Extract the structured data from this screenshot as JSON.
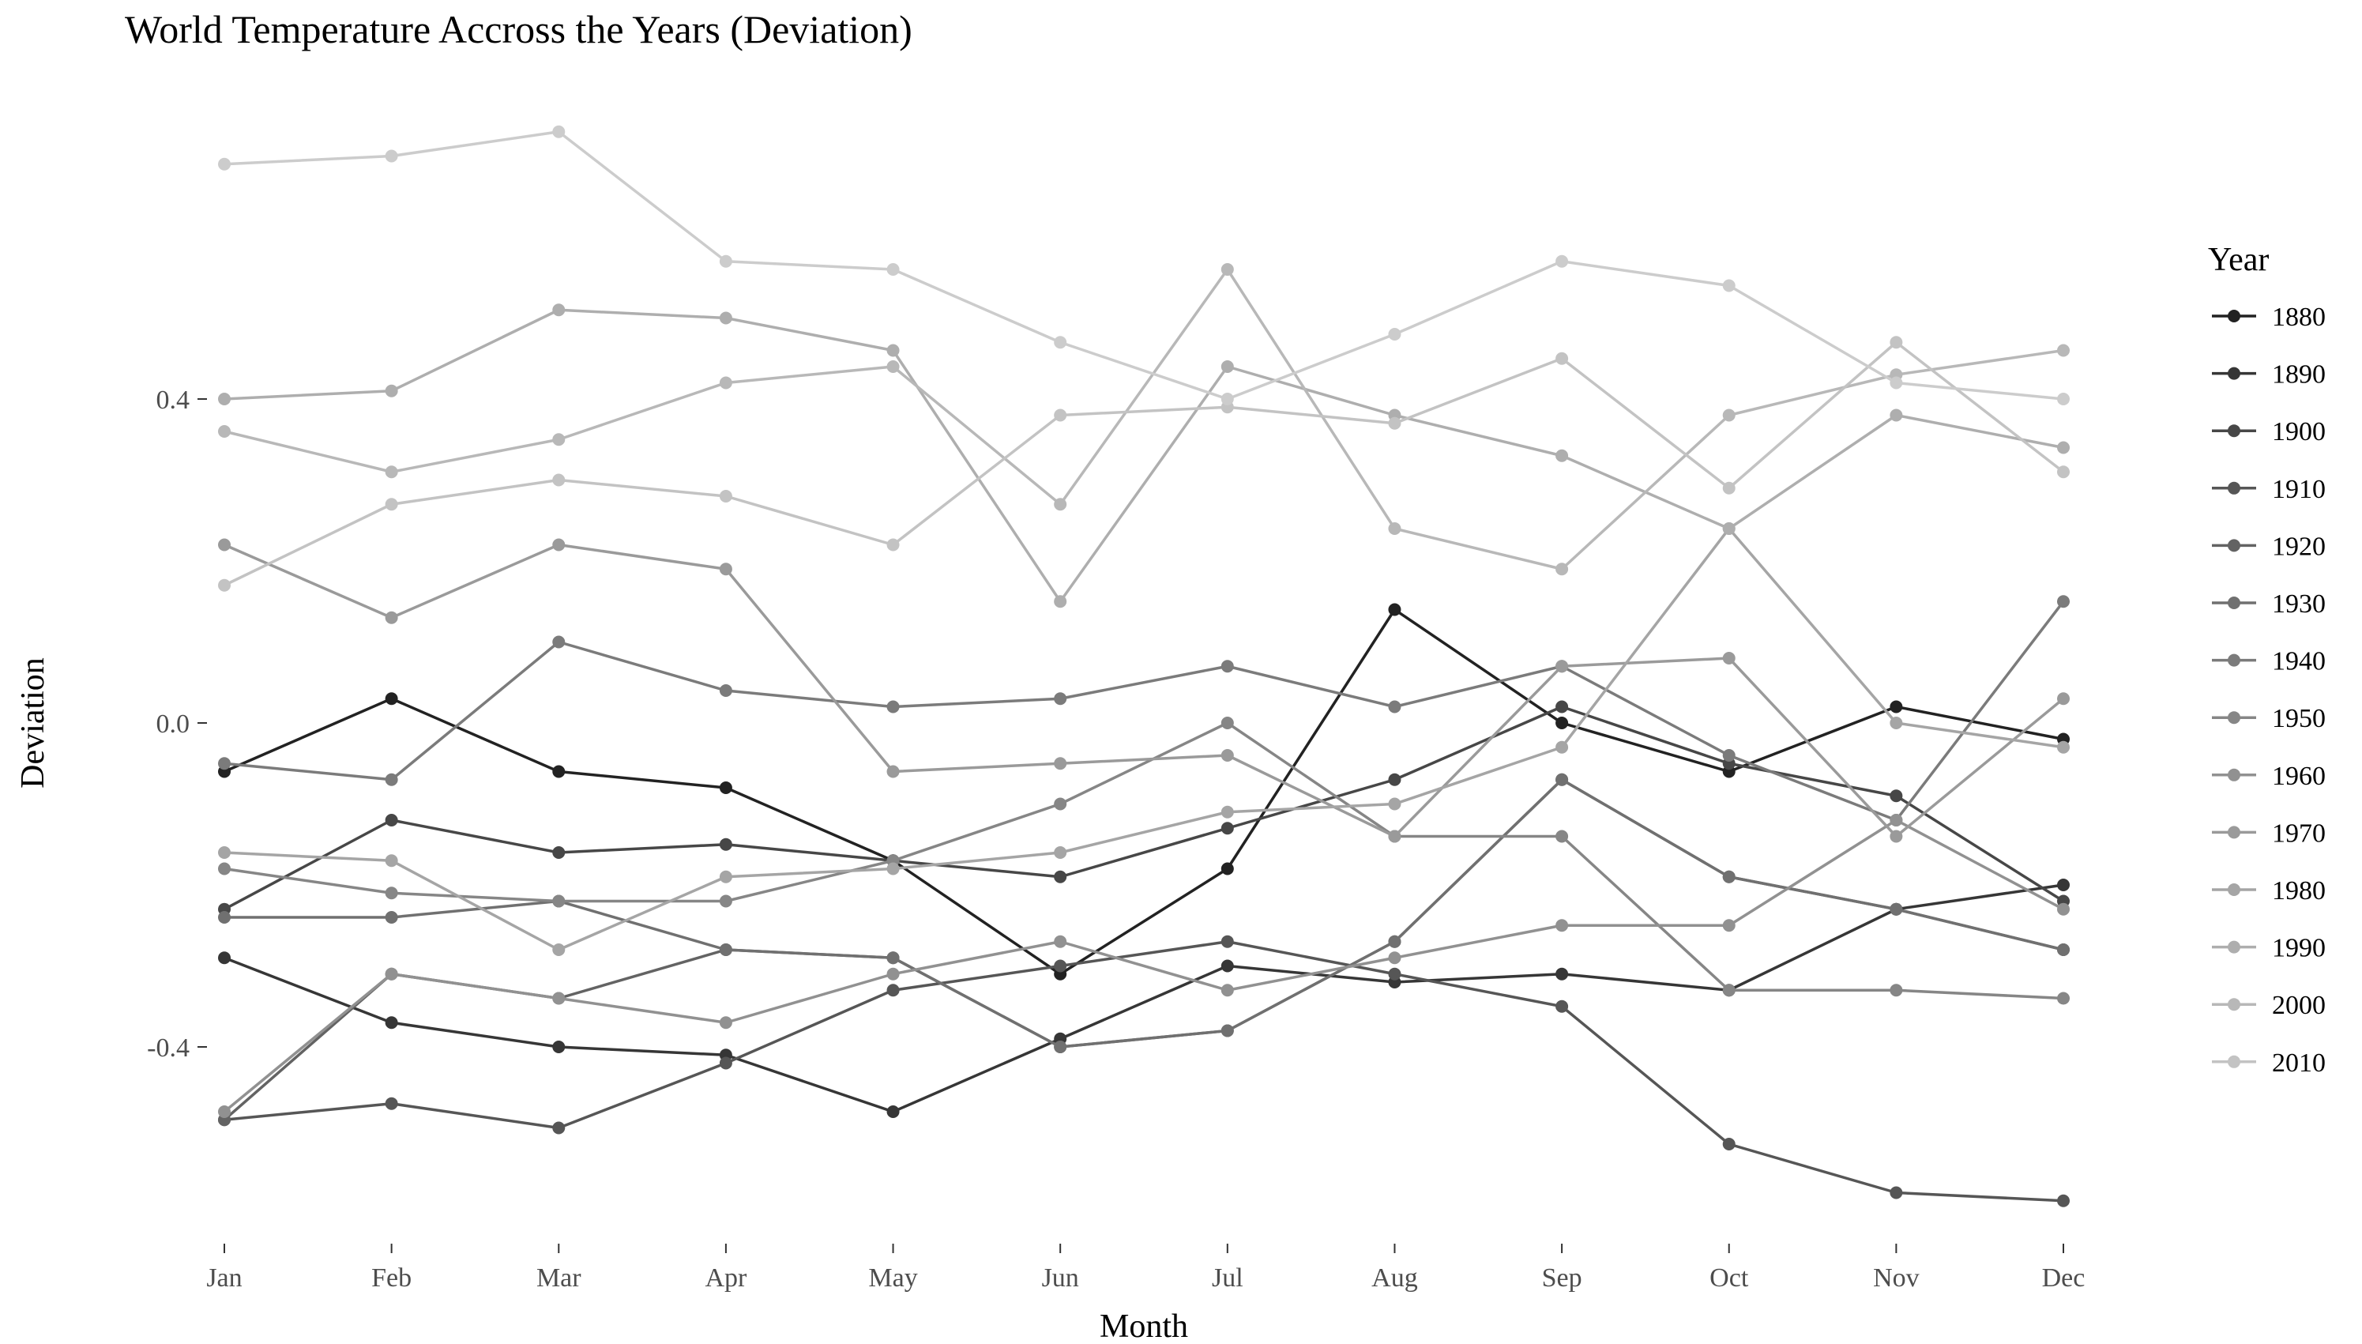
{
  "chart_data": {
    "type": "line",
    "title": "World Temperature Accross the Years (Deviation)",
    "xlabel": "Month",
    "ylabel": "Deviation",
    "categories": [
      "Jan",
      "Feb",
      "Mar",
      "Apr",
      "May",
      "Jun",
      "Jul",
      "Aug",
      "Sep",
      "Oct",
      "Nov",
      "Dec"
    ],
    "yticks": [
      -0.4,
      0.0,
      0.4
    ],
    "ytick_labels": [
      "-0.4",
      "0.0",
      "0.4"
    ],
    "ylim": [
      -0.64,
      0.74
    ],
    "grid": false,
    "legend_title": "Year",
    "legend_position": "right",
    "series": [
      {
        "name": "1880",
        "color": "#222222",
        "values": [
          -0.06,
          0.03,
          -0.06,
          -0.08,
          -0.17,
          -0.31,
          -0.18,
          0.14,
          0.0,
          -0.06,
          0.02,
          -0.02
        ]
      },
      {
        "name": "1890",
        "color": "#363636",
        "values": [
          -0.29,
          -0.37,
          -0.4,
          -0.41,
          -0.48,
          -0.39,
          -0.3,
          -0.32,
          -0.31,
          -0.33,
          -0.23,
          -0.2
        ]
      },
      {
        "name": "1900",
        "color": "#474747",
        "values": [
          -0.23,
          -0.12,
          -0.16,
          -0.15,
          -0.17,
          -0.19,
          -0.13,
          -0.07,
          0.02,
          -0.05,
          -0.09,
          -0.22
        ]
      },
      {
        "name": "1910",
        "color": "#565656",
        "values": [
          -0.49,
          -0.47,
          -0.5,
          -0.42,
          -0.33,
          -0.3,
          -0.27,
          -0.31,
          -0.35,
          -0.52,
          -0.58,
          -0.59
        ]
      },
      {
        "name": "1920",
        "color": "#636363",
        "values": [
          -0.49,
          -0.31,
          -0.34,
          -0.28,
          -0.29,
          -0.4,
          -0.38,
          -0.27,
          -0.07,
          -0.19,
          -0.23,
          -0.28
        ]
      },
      {
        "name": "1930",
        "color": "#707070",
        "values": [
          -0.24,
          -0.24,
          -0.22,
          -0.28,
          -0.29,
          -0.4,
          -0.38,
          -0.27,
          -0.07,
          -0.19,
          -0.23,
          -0.28
        ]
      },
      {
        "name": "1940",
        "color": "#7b7b7b",
        "values": [
          -0.05,
          -0.07,
          0.1,
          0.04,
          0.02,
          0.03,
          0.07,
          0.02,
          0.07,
          -0.04,
          -0.12,
          0.15
        ]
      },
      {
        "name": "1950",
        "color": "#868686",
        "values": [
          -0.18,
          -0.21,
          -0.22,
          -0.22,
          -0.17,
          -0.1,
          0.0,
          -0.14,
          -0.14,
          -0.33,
          -0.33,
          -0.34
        ]
      },
      {
        "name": "1960",
        "color": "#919191",
        "values": [
          -0.48,
          -0.31,
          -0.34,
          -0.37,
          -0.31,
          -0.27,
          -0.33,
          -0.29,
          -0.25,
          -0.25,
          -0.12,
          -0.23
        ]
      },
      {
        "name": "1970",
        "color": "#9a9a9a",
        "values": [
          0.22,
          0.13,
          0.22,
          0.19,
          -0.06,
          -0.05,
          -0.04,
          -0.14,
          0.07,
          0.08,
          -0.14,
          0.03
        ]
      },
      {
        "name": "1980",
        "color": "#a5a5a5",
        "values": [
          -0.16,
          -0.17,
          -0.28,
          -0.19,
          -0.18,
          -0.16,
          -0.11,
          -0.1,
          -0.03,
          0.24,
          0.0,
          -0.03
        ]
      },
      {
        "name": "1990",
        "color": "#aeaeae",
        "values": [
          0.4,
          0.41,
          0.51,
          0.5,
          0.46,
          0.15,
          0.44,
          0.38,
          0.33,
          0.24,
          0.38,
          0.34
        ]
      },
      {
        "name": "2000",
        "color": "#b8b8b8",
        "values": [
          0.36,
          0.31,
          0.35,
          0.42,
          0.44,
          0.27,
          0.56,
          0.24,
          0.19,
          0.38,
          0.43,
          0.46
        ]
      },
      {
        "name": "2010",
        "color": "#c3c3c3",
        "values": [
          0.17,
          0.27,
          0.3,
          0.28,
          0.22,
          0.38,
          0.39,
          0.37,
          0.45,
          0.29,
          0.47,
          0.31
        ]
      },
      {
        "name": "",
        "color": "#cccccc",
        "values": [
          0.69,
          0.7,
          0.73,
          0.57,
          0.56,
          0.47,
          0.4,
          0.48,
          0.57,
          0.54,
          0.42,
          0.4
        ]
      }
    ]
  }
}
